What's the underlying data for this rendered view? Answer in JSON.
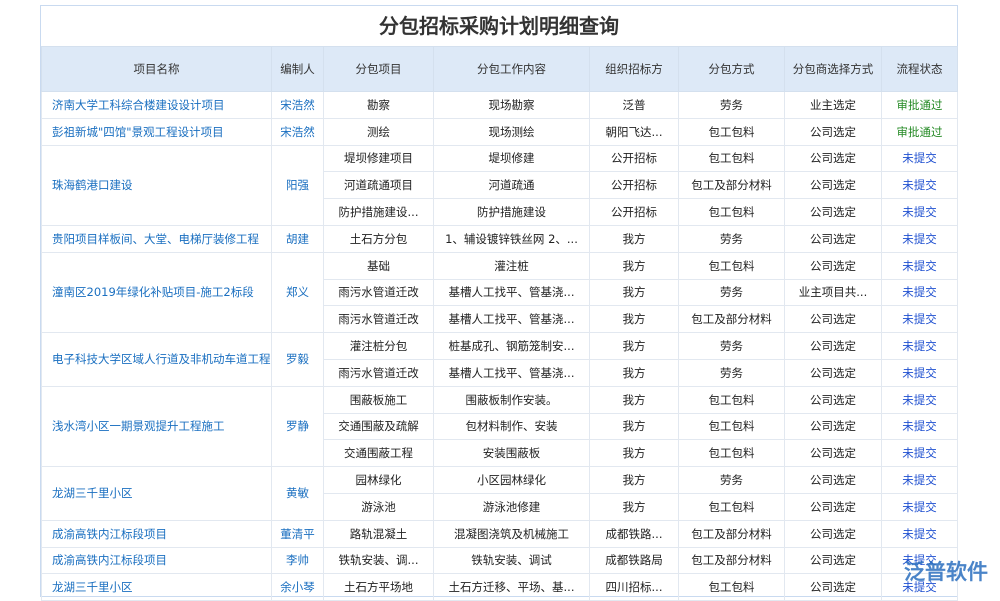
{
  "title": "分包招标采购计划明细查询",
  "columns": [
    "项目名称",
    "编制人",
    "分包项目",
    "分包工作内容",
    "组织招标方",
    "分包方式",
    "分包商选择方式",
    "流程状态"
  ],
  "groups": [
    {
      "project": "济南大学工科综合楼建设设计项目",
      "person": "宋浩然",
      "items": [
        [
          "勘察",
          "现场勘察",
          "泛普",
          "劳务",
          "业主选定",
          "审批通过"
        ]
      ]
    },
    {
      "project": "彭祖新城\"四馆\"景观工程设计项目",
      "person": "宋浩然",
      "items": [
        [
          "测绘",
          "现场测绘",
          "朝阳飞达...",
          "包工包料",
          "公司选定",
          "审批通过"
        ]
      ]
    },
    {
      "project": "珠海鹤港口建设",
      "person": "阳强",
      "items": [
        [
          "堤坝修建项目",
          "堤坝修建",
          "公开招标",
          "包工包料",
          "公司选定",
          "未提交"
        ],
        [
          "河道疏通项目",
          "河道疏通",
          "公开招标",
          "包工及部分材料",
          "公司选定",
          "未提交"
        ],
        [
          "防护措施建设...",
          "防护措施建设",
          "公开招标",
          "包工包料",
          "公司选定",
          "未提交"
        ]
      ]
    },
    {
      "project": "贵阳项目样板间、大堂、电梯厅装修工程",
      "person": "胡建",
      "items": [
        [
          "土石方分包",
          "1、辅设镀锌铁丝网 2、...",
          "我方",
          "劳务",
          "公司选定",
          "未提交"
        ]
      ]
    },
    {
      "project": "潼南区2019年绿化补贴项目-施工2标段",
      "person": "郑义",
      "items": [
        [
          "基础",
          "灌注桩",
          "我方",
          "包工包料",
          "公司选定",
          "未提交"
        ],
        [
          "雨污水管道迁改",
          "基槽人工找平、管基浇...",
          "我方",
          "劳务",
          "业主项目共...",
          "未提交"
        ],
        [
          "雨污水管道迁改",
          "基槽人工找平、管基浇...",
          "我方",
          "包工及部分材料",
          "公司选定",
          "未提交"
        ]
      ]
    },
    {
      "project": "电子科技大学区域人行道及非机动车道工程",
      "person": "罗毅",
      "items": [
        [
          "灌注桩分包",
          "桩基成孔、钢筋笼制安...",
          "我方",
          "劳务",
          "公司选定",
          "未提交"
        ],
        [
          "雨污水管道迁改",
          "基槽人工找平、管基浇...",
          "我方",
          "劳务",
          "公司选定",
          "未提交"
        ]
      ]
    },
    {
      "project": "浅水湾小区一期景观提升工程施工",
      "person": "罗静",
      "items": [
        [
          "围蔽板施工",
          "围蔽板制作安装。",
          "我方",
          "包工包料",
          "公司选定",
          "未提交"
        ],
        [
          "交通围蔽及疏解",
          "包材料制作、安装",
          "我方",
          "包工包料",
          "公司选定",
          "未提交"
        ],
        [
          "交通围蔽工程",
          "安装围蔽板",
          "我方",
          "包工包料",
          "公司选定",
          "未提交"
        ]
      ]
    },
    {
      "project": "龙湖三千里小区",
      "person": "黄敏",
      "items": [
        [
          "园林绿化",
          "小区园林绿化",
          "我方",
          "劳务",
          "公司选定",
          "未提交"
        ],
        [
          "游泳池",
          "游泳池修建",
          "我方",
          "包工包料",
          "公司选定",
          "未提交"
        ]
      ]
    },
    {
      "project": "成渝高铁内江标段项目",
      "person": "董清平",
      "items": [
        [
          "路轨混凝土",
          "混凝图浇筑及机械施工",
          "成都铁路...",
          "包工及部分材料",
          "公司选定",
          "未提交"
        ]
      ]
    },
    {
      "project": "成渝高铁内江标段项目",
      "person": "李帅",
      "items": [
        [
          "铁轨安装、调...",
          "铁轨安装、调试",
          "成都铁路局",
          "包工及部分材料",
          "公司选定",
          "未提交"
        ]
      ]
    },
    {
      "project": "龙湖三千里小区",
      "person": "余小琴",
      "items": [
        [
          "土石方平场地",
          "土石方迁移、平场、基...",
          "四川招标...",
          "包工包料",
          "公司选定",
          "未提交"
        ]
      ]
    }
  ],
  "logo": "泛普软件"
}
